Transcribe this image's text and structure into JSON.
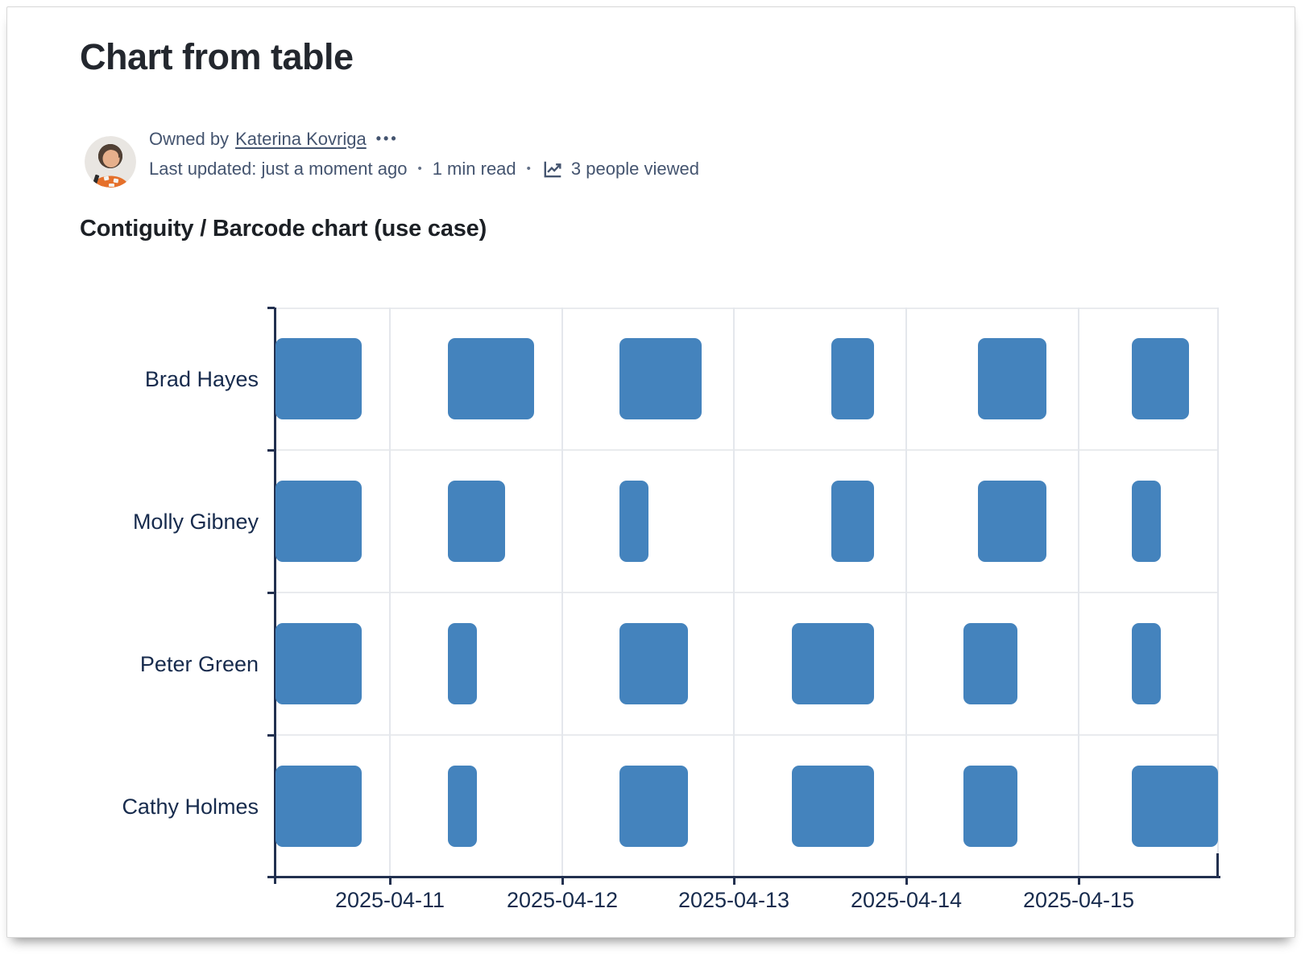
{
  "page": {
    "title": "Chart from table",
    "byline": {
      "owned_by_label": "Owned by",
      "owner_name": "Katerina Kovriga",
      "more_actions": "•••",
      "last_updated": "Last updated: just a moment ago",
      "separator": "•",
      "read_time": "1 min read",
      "views": "3 people viewed"
    },
    "section_heading": "Contiguity / Barcode chart (use case)"
  },
  "icons": {
    "avatar": "user-photo-orange-shirt",
    "views": "trend-line-chart-icon",
    "more": "ellipsis-icon"
  },
  "colors": {
    "bar": "#4483bd",
    "axis_line": "#22304f",
    "axis_text": "#172b4d",
    "gridline": "#e4e7ec",
    "meta_text": "#44546f",
    "title_text": "#23272e"
  },
  "chart_data": {
    "type": "bar",
    "subtype": "contiguity-barcode-timeline",
    "title": "Contiguity / Barcode chart (use case)",
    "xlabel": "",
    "ylabel": "",
    "grid": true,
    "legend": "none",
    "categories": [
      "Brad Hayes",
      "Molly Gibney",
      "Peter Green",
      "Cathy Holmes"
    ],
    "x_axis": {
      "min": "2025-04-10 08:00",
      "max": "2025-04-15 19:30",
      "ticks": [
        "2025-04-11",
        "2025-04-12",
        "2025-04-13",
        "2025-04-14",
        "2025-04-15"
      ]
    },
    "series": [
      {
        "name": "Brad Hayes",
        "intervals": [
          [
            "2025-04-10 08:00",
            "2025-04-10 20:00"
          ],
          [
            "2025-04-11 08:00",
            "2025-04-11 20:00"
          ],
          [
            "2025-04-12 08:00",
            "2025-04-12 19:30"
          ],
          [
            "2025-04-13 13:30",
            "2025-04-13 19:30"
          ],
          [
            "2025-04-14 10:00",
            "2025-04-14 19:30"
          ],
          [
            "2025-04-15 07:30",
            "2025-04-15 15:30"
          ]
        ]
      },
      {
        "name": "Molly Gibney",
        "intervals": [
          [
            "2025-04-10 08:00",
            "2025-04-10 20:00"
          ],
          [
            "2025-04-11 08:00",
            "2025-04-11 16:00"
          ],
          [
            "2025-04-12 08:00",
            "2025-04-12 12:00"
          ],
          [
            "2025-04-13 13:30",
            "2025-04-13 19:30"
          ],
          [
            "2025-04-14 10:00",
            "2025-04-14 19:30"
          ],
          [
            "2025-04-15 07:30",
            "2025-04-15 11:30"
          ]
        ]
      },
      {
        "name": "Peter Green",
        "intervals": [
          [
            "2025-04-10 08:00",
            "2025-04-10 20:00"
          ],
          [
            "2025-04-11 08:00",
            "2025-04-11 12:00"
          ],
          [
            "2025-04-12 08:00",
            "2025-04-12 17:30"
          ],
          [
            "2025-04-13 08:00",
            "2025-04-13 19:30"
          ],
          [
            "2025-04-14 08:00",
            "2025-04-14 15:30"
          ],
          [
            "2025-04-15 07:30",
            "2025-04-15 11:30"
          ]
        ]
      },
      {
        "name": "Cathy Holmes",
        "intervals": [
          [
            "2025-04-10 08:00",
            "2025-04-10 20:00"
          ],
          [
            "2025-04-11 08:00",
            "2025-04-11 12:00"
          ],
          [
            "2025-04-12 08:00",
            "2025-04-12 17:30"
          ],
          [
            "2025-04-13 08:00",
            "2025-04-13 19:30"
          ],
          [
            "2025-04-14 08:00",
            "2025-04-14 15:30"
          ],
          [
            "2025-04-15 07:30",
            "2025-04-15 19:30"
          ]
        ]
      }
    ]
  }
}
